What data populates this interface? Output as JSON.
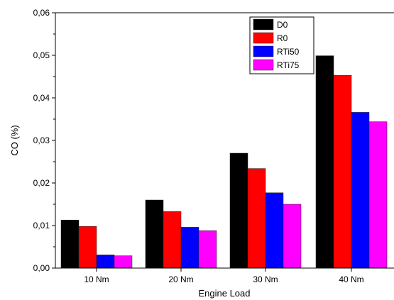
{
  "chart_data": {
    "type": "bar",
    "title": "",
    "xlabel": "Engine Load",
    "ylabel": "CO (%)",
    "categories": [
      "10 Nm",
      "20 Nm",
      "30 Nm",
      "40 Nm"
    ],
    "ylim": [
      0,
      0.06
    ],
    "yticks": [
      "0,00",
      "0,01",
      "0,02",
      "0,03",
      "0,04",
      "0,05",
      "0,06"
    ],
    "legend_position": "top-right",
    "series": [
      {
        "name": "D0",
        "color": "#000000",
        "values": [
          0.0113,
          0.016,
          0.027,
          0.0499
        ]
      },
      {
        "name": "R0",
        "color": "#ff0000",
        "values": [
          0.0098,
          0.0133,
          0.0234,
          0.0453
        ]
      },
      {
        "name": "RTi50",
        "color": "#0000ff",
        "values": [
          0.0031,
          0.0096,
          0.0177,
          0.0366
        ]
      },
      {
        "name": "RTi75",
        "color": "#ff00ff",
        "values": [
          0.0029,
          0.0088,
          0.015,
          0.0344
        ]
      }
    ]
  }
}
